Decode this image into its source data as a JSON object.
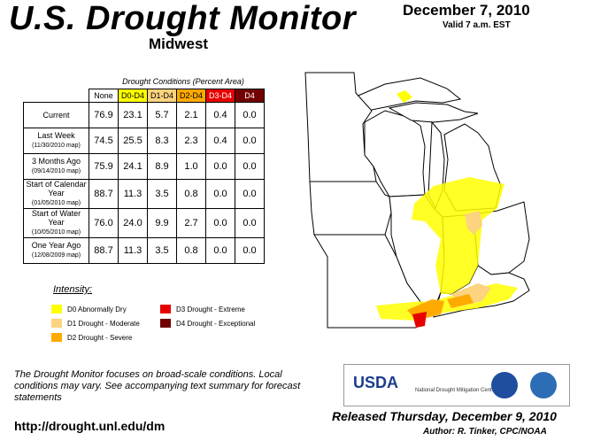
{
  "header": {
    "title": "U.S. Drought Monitor",
    "region": "Midwest",
    "date": "December 7, 2010",
    "valid": "Valid 7 a.m. EST"
  },
  "table": {
    "caption": "Drought Conditions (Percent Area)",
    "columns": [
      "None",
      "D0-D4",
      "D1-D4",
      "D2-D4",
      "D3-D4",
      "D4"
    ],
    "rows": [
      {
        "label": "Current",
        "sub": "",
        "values": [
          "76.9",
          "23.1",
          "5.7",
          "2.1",
          "0.4",
          "0.0"
        ]
      },
      {
        "label": "Last Week",
        "sub": "(11/30/2010 map)",
        "values": [
          "74.5",
          "25.5",
          "8.3",
          "2.3",
          "0.4",
          "0.0"
        ]
      },
      {
        "label": "3 Months Ago",
        "sub": "(09/14/2010 map)",
        "values": [
          "75.9",
          "24.1",
          "8.9",
          "1.0",
          "0.0",
          "0.0"
        ]
      },
      {
        "label": "Start of Calendar Year",
        "sub": "(01/05/2010 map)",
        "values": [
          "88.7",
          "11.3",
          "3.5",
          "0.8",
          "0.0",
          "0.0"
        ]
      },
      {
        "label": "Start of Water Year",
        "sub": "(10/05/2010 map)",
        "values": [
          "76.0",
          "24.0",
          "9.9",
          "2.7",
          "0.0",
          "0.0"
        ]
      },
      {
        "label": "One Year Ago",
        "sub": "(12/08/2009 map)",
        "values": [
          "88.7",
          "11.3",
          "3.5",
          "0.8",
          "0.0",
          "0.0"
        ]
      }
    ]
  },
  "legend": {
    "title": "Intensity:",
    "items": [
      {
        "label": "D0 Abnormally Dry",
        "color": "#ffff00"
      },
      {
        "label": "D1 Drought - Moderate",
        "color": "#fcd37f"
      },
      {
        "label": "D2 Drought - Severe",
        "color": "#ffaa00"
      },
      {
        "label": "D3 Drought - Extreme",
        "color": "#e60000"
      },
      {
        "label": "D4 Drought - Exceptional",
        "color": "#730000"
      }
    ]
  },
  "footer": {
    "note": "The Drought Monitor focuses on broad-scale conditions. Local conditions may vary. See accompanying text summary for forecast statements",
    "url": "http://drought.unl.edu/dm",
    "released": "Released Thursday, December 9, 2010",
    "author": "Author: R. Tinker, CPC/NOAA"
  },
  "logos": {
    "usda": "USDA",
    "ndmc": "National Drought Mitigation Center"
  }
}
